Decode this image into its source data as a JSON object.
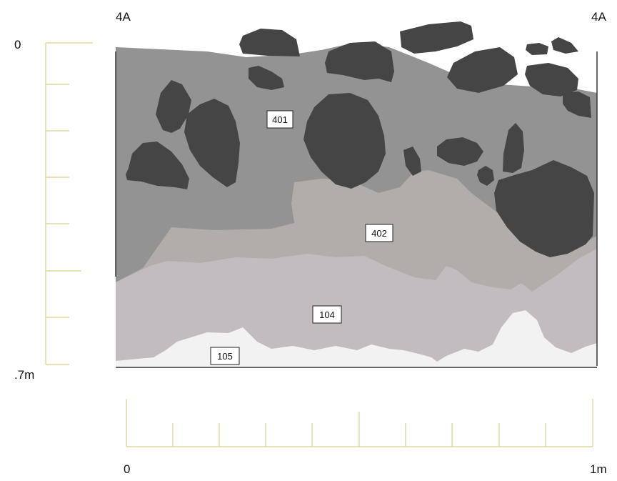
{
  "section": {
    "corner_label_left": "4A",
    "corner_label_right": "4A",
    "layers": [
      {
        "id": "401",
        "label": "401",
        "color": "#939393"
      },
      {
        "id": "402",
        "label": "402",
        "color": "#b1adab"
      },
      {
        "id": "104",
        "label": "104",
        "color": "#c2bcc0"
      },
      {
        "id": "105",
        "label": "105",
        "color": "#f1f2f1"
      }
    ],
    "stone_color": "#454545"
  },
  "vertical_scale": {
    "top_label": "0",
    "bottom_label": ".7m",
    "color": "#d6d28a"
  },
  "horizontal_scale": {
    "left_label": "0",
    "right_label": "1m",
    "color": "#d6d28a"
  }
}
